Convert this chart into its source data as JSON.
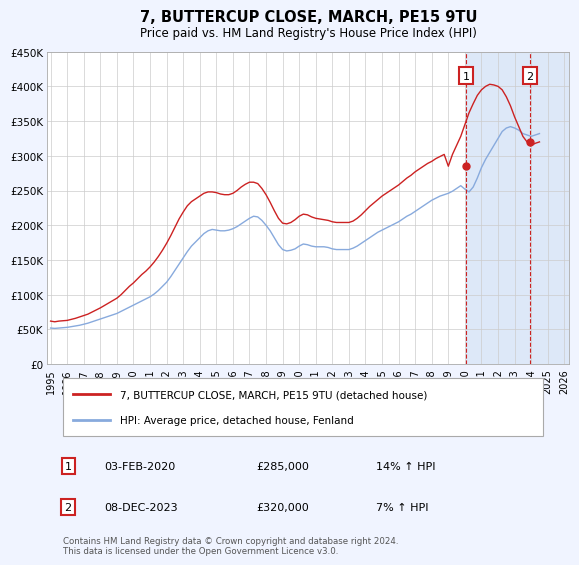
{
  "title": "7, BUTTERCUP CLOSE, MARCH, PE15 9TU",
  "subtitle": "Price paid vs. HM Land Registry's House Price Index (HPI)",
  "ylim": [
    0,
    450000
  ],
  "yticks": [
    0,
    50000,
    100000,
    150000,
    200000,
    250000,
    300000,
    350000,
    400000,
    450000
  ],
  "ytick_labels": [
    "£0",
    "£50K",
    "£100K",
    "£150K",
    "£200K",
    "£250K",
    "£300K",
    "£350K",
    "£400K",
    "£450K"
  ],
  "xlim_start": 1994.8,
  "xlim_end": 2026.3,
  "xticks": [
    1995,
    1996,
    1997,
    1998,
    1999,
    2000,
    2001,
    2002,
    2003,
    2004,
    2005,
    2006,
    2007,
    2008,
    2009,
    2010,
    2011,
    2012,
    2013,
    2014,
    2015,
    2016,
    2017,
    2018,
    2019,
    2020,
    2021,
    2022,
    2023,
    2024,
    2025,
    2026
  ],
  "hpi_color": "#88aadd",
  "price_color": "#cc2222",
  "shade_color": "#dde8f8",
  "marker1_x": 2020.08,
  "marker1_y": 285000,
  "marker2_x": 2023.92,
  "marker2_y": 320000,
  "marker1_label": "1",
  "marker2_label": "2",
  "marker1_date": "03-FEB-2020",
  "marker1_price": "£285,000",
  "marker1_hpi": "14% ↑ HPI",
  "marker2_date": "08-DEC-2023",
  "marker2_price": "£320,000",
  "marker2_hpi": "7% ↑ HPI",
  "legend_line1": "7, BUTTERCUP CLOSE, MARCH, PE15 9TU (detached house)",
  "legend_line2": "HPI: Average price, detached house, Fenland",
  "footnote": "Contains HM Land Registry data © Crown copyright and database right 2024.\nThis data is licensed under the Open Government Licence v3.0.",
  "bg_color": "#f0f4ff",
  "plot_bg": "#ffffff",
  "hpi_data_x": [
    1995.0,
    1995.25,
    1995.5,
    1995.75,
    1996.0,
    1996.25,
    1996.5,
    1996.75,
    1997.0,
    1997.25,
    1997.5,
    1997.75,
    1998.0,
    1998.25,
    1998.5,
    1998.75,
    1999.0,
    1999.25,
    1999.5,
    1999.75,
    2000.0,
    2000.25,
    2000.5,
    2000.75,
    2001.0,
    2001.25,
    2001.5,
    2001.75,
    2002.0,
    2002.25,
    2002.5,
    2002.75,
    2003.0,
    2003.25,
    2003.5,
    2003.75,
    2004.0,
    2004.25,
    2004.5,
    2004.75,
    2005.0,
    2005.25,
    2005.5,
    2005.75,
    2006.0,
    2006.25,
    2006.5,
    2006.75,
    2007.0,
    2007.25,
    2007.5,
    2007.75,
    2008.0,
    2008.25,
    2008.5,
    2008.75,
    2009.0,
    2009.25,
    2009.5,
    2009.75,
    2010.0,
    2010.25,
    2010.5,
    2010.75,
    2011.0,
    2011.25,
    2011.5,
    2011.75,
    2012.0,
    2012.25,
    2012.5,
    2012.75,
    2013.0,
    2013.25,
    2013.5,
    2013.75,
    2014.0,
    2014.25,
    2014.5,
    2014.75,
    2015.0,
    2015.25,
    2015.5,
    2015.75,
    2016.0,
    2016.25,
    2016.5,
    2016.75,
    2017.0,
    2017.25,
    2017.5,
    2017.75,
    2018.0,
    2018.25,
    2018.5,
    2018.75,
    2019.0,
    2019.25,
    2019.5,
    2019.75,
    2020.0,
    2020.25,
    2020.5,
    2020.75,
    2021.0,
    2021.25,
    2021.5,
    2021.75,
    2022.0,
    2022.25,
    2022.5,
    2022.75,
    2023.0,
    2023.25,
    2023.5,
    2023.75,
    2024.0,
    2024.25,
    2024.5
  ],
  "hpi_data_y": [
    52000,
    51500,
    52000,
    52500,
    53000,
    54000,
    55000,
    56000,
    57500,
    59000,
    61000,
    63000,
    65000,
    67000,
    69000,
    71000,
    73000,
    76000,
    79000,
    82000,
    85000,
    88000,
    91000,
    94000,
    97000,
    101000,
    106000,
    112000,
    118000,
    126000,
    135000,
    144000,
    153000,
    162000,
    170000,
    176000,
    182000,
    188000,
    192000,
    194000,
    193000,
    192000,
    192000,
    193000,
    195000,
    198000,
    202000,
    206000,
    210000,
    213000,
    212000,
    207000,
    200000,
    192000,
    182000,
    172000,
    165000,
    163000,
    164000,
    166000,
    170000,
    173000,
    172000,
    170000,
    169000,
    169000,
    169000,
    168000,
    166000,
    165000,
    165000,
    165000,
    165000,
    167000,
    170000,
    174000,
    178000,
    182000,
    186000,
    190000,
    193000,
    196000,
    199000,
    202000,
    205000,
    209000,
    213000,
    216000,
    220000,
    224000,
    228000,
    232000,
    236000,
    239000,
    242000,
    244000,
    246000,
    249000,
    253000,
    257000,
    252000,
    248000,
    255000,
    268000,
    283000,
    295000,
    305000,
    315000,
    325000,
    335000,
    340000,
    342000,
    340000,
    337000,
    332000,
    330000,
    328000,
    330000,
    332000
  ],
  "price_data_x": [
    1995.0,
    1995.25,
    1995.5,
    1995.75,
    1996.0,
    1996.25,
    1996.5,
    1996.75,
    1997.0,
    1997.25,
    1997.5,
    1997.75,
    1998.0,
    1998.25,
    1998.5,
    1998.75,
    1999.0,
    1999.25,
    1999.5,
    1999.75,
    2000.0,
    2000.25,
    2000.5,
    2000.75,
    2001.0,
    2001.25,
    2001.5,
    2001.75,
    2002.0,
    2002.25,
    2002.5,
    2002.75,
    2003.0,
    2003.25,
    2003.5,
    2003.75,
    2004.0,
    2004.25,
    2004.5,
    2004.75,
    2005.0,
    2005.25,
    2005.5,
    2005.75,
    2006.0,
    2006.25,
    2006.5,
    2006.75,
    2007.0,
    2007.25,
    2007.5,
    2007.75,
    2008.0,
    2008.25,
    2008.5,
    2008.75,
    2009.0,
    2009.25,
    2009.5,
    2009.75,
    2010.0,
    2010.25,
    2010.5,
    2010.75,
    2011.0,
    2011.25,
    2011.5,
    2011.75,
    2012.0,
    2012.25,
    2012.5,
    2012.75,
    2013.0,
    2013.25,
    2013.5,
    2013.75,
    2014.0,
    2014.25,
    2014.5,
    2014.75,
    2015.0,
    2015.25,
    2015.5,
    2015.75,
    2016.0,
    2016.25,
    2016.5,
    2016.75,
    2017.0,
    2017.25,
    2017.5,
    2017.75,
    2018.0,
    2018.25,
    2018.5,
    2018.75,
    2019.0,
    2019.25,
    2019.5,
    2019.75,
    2020.0,
    2020.25,
    2020.5,
    2020.75,
    2021.0,
    2021.25,
    2021.5,
    2021.75,
    2022.0,
    2022.25,
    2022.5,
    2022.75,
    2023.0,
    2023.25,
    2023.5,
    2023.75,
    2024.0,
    2024.25,
    2024.5
  ],
  "price_data_y": [
    62000,
    61000,
    62000,
    62500,
    63000,
    64500,
    66000,
    68000,
    70000,
    72000,
    75000,
    78000,
    81000,
    84500,
    88000,
    91500,
    95000,
    100000,
    106000,
    112000,
    117000,
    123000,
    129000,
    134000,
    140000,
    147000,
    155000,
    164000,
    174000,
    185000,
    197000,
    209000,
    219000,
    228000,
    234000,
    238000,
    242000,
    246000,
    248000,
    248000,
    247000,
    245000,
    244000,
    244000,
    246000,
    250000,
    255000,
    259000,
    262000,
    262000,
    260000,
    253000,
    244000,
    233000,
    221000,
    210000,
    203000,
    202000,
    204000,
    208000,
    213000,
    216000,
    215000,
    212000,
    210000,
    209000,
    208000,
    207000,
    205000,
    204000,
    204000,
    204000,
    204000,
    206000,
    210000,
    215000,
    221000,
    227000,
    232000,
    237000,
    242000,
    246000,
    250000,
    254000,
    258000,
    263000,
    268000,
    272000,
    277000,
    281000,
    285000,
    289000,
    292000,
    296000,
    299000,
    302000,
    285000,
    302000,
    315000,
    328000,
    345000,
    362000,
    375000,
    387000,
    395000,
    400000,
    403000,
    402000,
    400000,
    395000,
    385000,
    372000,
    356000,
    342000,
    328000,
    320000,
    315000,
    318000,
    320000
  ]
}
